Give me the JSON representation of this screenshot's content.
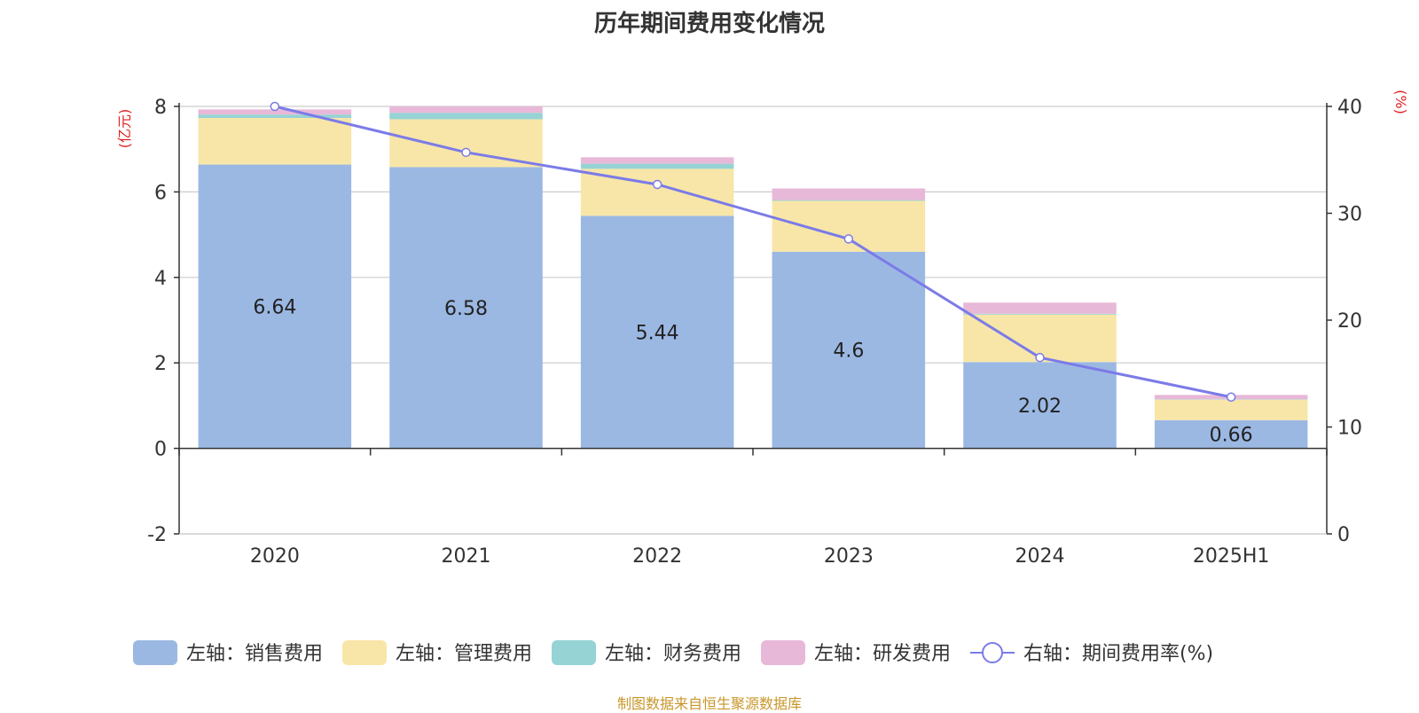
{
  "chart_data": {
    "type": "bar",
    "title": "历年期间费用变化情况",
    "categories": [
      "2020",
      "2021",
      "2022",
      "2023",
      "2024",
      "2025H1"
    ],
    "left_axis": {
      "unit_label": "(亿元)",
      "ylim": [
        -2,
        8
      ],
      "ticks": [
        -2,
        0,
        2,
        4,
        6,
        8
      ]
    },
    "right_axis": {
      "unit_label": "(%)",
      "ylim": [
        0,
        40
      ],
      "ticks": [
        0,
        10,
        20,
        30,
        40
      ]
    },
    "series": [
      {
        "name": "左轴：销售费用",
        "axis": "left",
        "kind": "bar",
        "color": "#9bb8e3",
        "values": [
          6.64,
          6.58,
          5.44,
          4.6,
          2.02,
          0.66
        ],
        "show_labels": true
      },
      {
        "name": "左轴：管理费用",
        "axis": "left",
        "kind": "bar",
        "color": "#f8e6a8",
        "values": [
          1.09,
          1.12,
          1.1,
          1.19,
          1.11,
          0.48
        ]
      },
      {
        "name": "左轴：财务费用",
        "axis": "left",
        "kind": "bar",
        "color": "#96d3d4",
        "values": [
          0.08,
          0.15,
          0.12,
          0.02,
          0.02,
          0.01
        ]
      },
      {
        "name": "左轴：研发费用",
        "axis": "left",
        "kind": "bar",
        "color": "#e8b8d8",
        "values": [
          0.12,
          0.15,
          0.15,
          0.27,
          0.26,
          0.1
        ]
      },
      {
        "name": "右轴：期间费用率(%)",
        "axis": "right",
        "kind": "line",
        "color": "#7b7be8",
        "values": [
          40.0,
          35.7,
          32.7,
          27.6,
          16.5,
          12.8
        ]
      }
    ],
    "grid": true,
    "legend_position": "bottom",
    "source_note": "制图数据来自恒生聚源数据库"
  }
}
